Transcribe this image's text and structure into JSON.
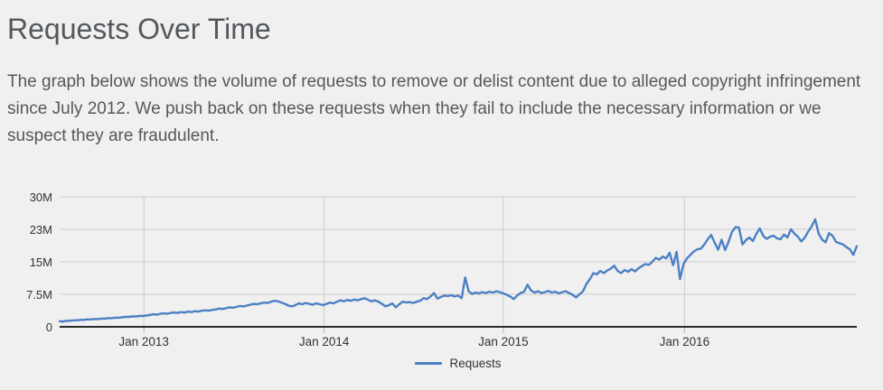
{
  "header": {
    "title": "Requests Over Time",
    "description": "The graph below shows the volume of requests to remove or delist content due to alleged copyright infringement since July 2012. We push back on these requests when they fail to include the necessary information or we suspect they are fraudulent."
  },
  "colors": {
    "background": "#f0f0f0",
    "gridline": "#cccccc",
    "tick": "#b5b5b5",
    "axis": "#2a2a2a",
    "text": "#333333",
    "line": "#4c80c4"
  },
  "chart_data": {
    "type": "line",
    "title": "Requests Over Time",
    "xlabel": "",
    "ylabel": "",
    "ylim": [
      0,
      30
    ],
    "grid": true,
    "legend_position": "bottom-center",
    "y_ticks": [
      {
        "label": "30M",
        "value": 30
      },
      {
        "label": "23M",
        "value": 22.5
      },
      {
        "label": "15M",
        "value": 15
      },
      {
        "label": "7.5M",
        "value": 7.5
      },
      {
        "label": "0",
        "value": 0
      }
    ],
    "x_ticks": [
      {
        "label": "Jan 2013",
        "index": 24.3
      },
      {
        "label": "Jan 2014",
        "index": 76.3
      },
      {
        "label": "Jan 2015",
        "index": 128.0
      },
      {
        "label": "Jan 2016",
        "index": 180.3
      }
    ],
    "x_unit": "weeks since July 2012",
    "value_unit": "requests (millions)",
    "series": [
      {
        "name": "Requests",
        "color": "#4c80c4",
        "values": [
          1.3,
          1.2,
          1.4,
          1.4,
          1.5,
          1.5,
          1.6,
          1.6,
          1.7,
          1.7,
          1.8,
          1.8,
          1.9,
          1.9,
          2.0,
          2.0,
          2.1,
          2.1,
          2.2,
          2.3,
          2.3,
          2.4,
          2.4,
          2.5,
          2.5,
          2.6,
          2.7,
          2.9,
          2.8,
          3.0,
          3.1,
          3.0,
          3.2,
          3.3,
          3.2,
          3.4,
          3.3,
          3.5,
          3.4,
          3.6,
          3.5,
          3.7,
          3.8,
          3.7,
          3.9,
          4.0,
          4.2,
          4.1,
          4.3,
          4.5,
          4.4,
          4.6,
          4.8,
          4.7,
          4.9,
          5.1,
          5.3,
          5.2,
          5.4,
          5.6,
          5.5,
          5.8,
          6.0,
          5.9,
          5.6,
          5.3,
          4.9,
          4.7,
          5.0,
          5.4,
          5.2,
          5.5,
          5.3,
          5.1,
          5.4,
          5.2,
          5.0,
          5.3,
          5.6,
          5.4,
          5.8,
          6.1,
          5.9,
          6.2,
          6.0,
          6.3,
          6.1,
          6.4,
          6.6,
          6.2,
          5.9,
          6.1,
          5.8,
          5.3,
          4.7,
          5.0,
          5.4,
          4.5,
          5.2,
          5.8,
          5.6,
          5.7,
          5.5,
          5.8,
          6.0,
          6.6,
          6.4,
          7.0,
          7.8,
          6.5,
          6.9,
          7.2,
          7.1,
          7.3,
          7.0,
          7.2,
          6.6,
          11.4,
          8.2,
          7.6,
          7.9,
          7.7,
          8.0,
          7.8,
          8.1,
          7.9,
          8.2,
          8.0,
          7.7,
          7.4,
          7.0,
          6.4,
          7.2,
          7.8,
          8.1,
          9.7,
          8.4,
          7.9,
          8.2,
          7.8,
          8.0,
          8.3,
          7.9,
          8.1,
          7.7,
          8.0,
          8.2,
          7.8,
          7.4,
          6.8,
          7.5,
          8.2,
          9.9,
          11.0,
          12.4,
          12.1,
          12.9,
          12.4,
          13.0,
          13.4,
          14.1,
          12.9,
          12.4,
          13.1,
          12.7,
          13.3,
          12.8,
          13.5,
          14.0,
          14.5,
          14.3,
          15.0,
          15.9,
          15.5,
          16.2,
          15.8,
          17.1,
          14.2,
          17.3,
          11.0,
          14.5,
          15.8,
          16.6,
          17.4,
          17.9,
          18.0,
          19.0,
          20.2,
          21.2,
          19.4,
          17.8,
          20.1,
          17.7,
          19.6,
          21.9,
          23.0,
          22.9,
          19.0,
          20.0,
          20.6,
          19.8,
          21.4,
          22.7,
          21.0,
          20.3,
          20.8,
          21.0,
          20.4,
          20.2,
          21.3,
          20.6,
          22.5,
          21.5,
          20.8,
          19.7,
          20.6,
          22.0,
          23.2,
          24.8,
          21.5,
          20.1,
          19.5,
          21.6,
          21.0,
          19.6,
          19.3,
          19.0,
          18.4,
          17.9,
          16.6,
          18.6
        ]
      }
    ]
  }
}
